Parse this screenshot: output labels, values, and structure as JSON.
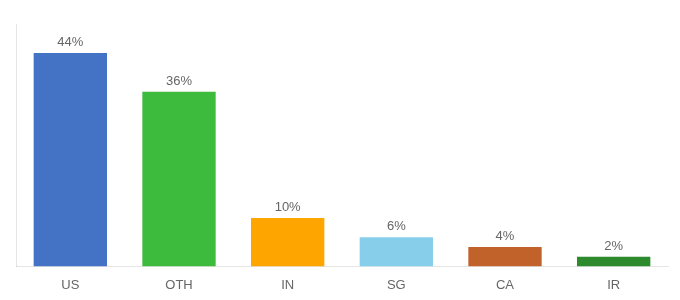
{
  "chart_data": {
    "type": "bar",
    "categories": [
      "US",
      "OTH",
      "IN",
      "SG",
      "CA",
      "IR"
    ],
    "values": [
      44,
      36,
      10,
      6,
      4,
      2
    ],
    "value_labels": [
      "44%",
      "36%",
      "10%",
      "6%",
      "4%",
      "2%"
    ],
    "colors": [
      "#4472c4",
      "#3dbb3d",
      "#ffa500",
      "#87ceeb",
      "#c0622a",
      "#2d8a2d"
    ],
    "ylim": [
      0,
      50
    ],
    "grid": false,
    "data_labels": true,
    "tick_labels": "x"
  }
}
